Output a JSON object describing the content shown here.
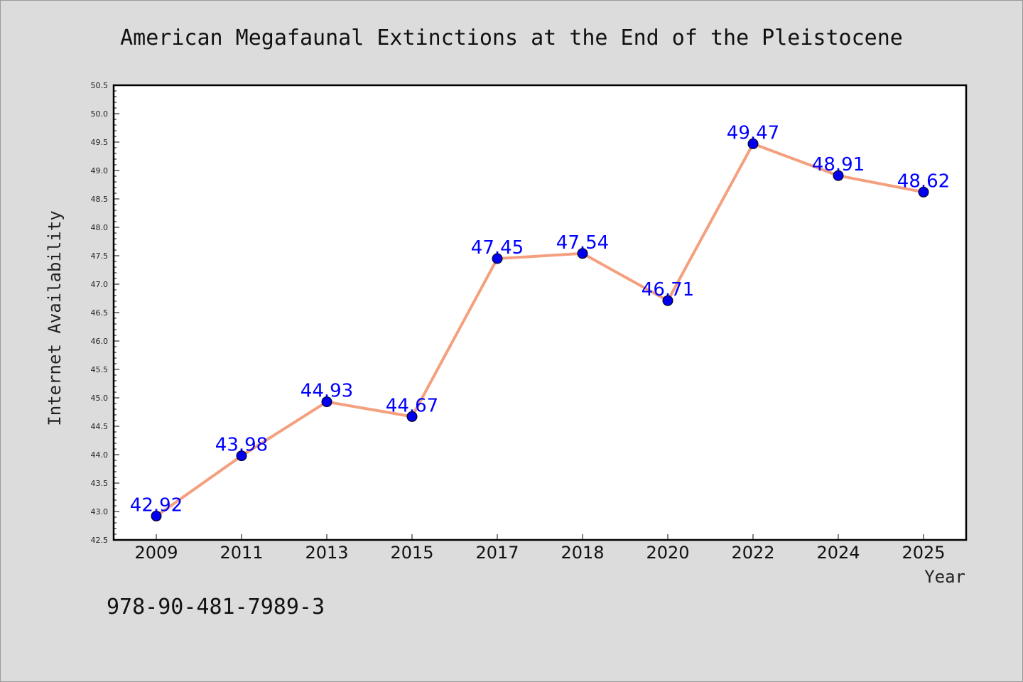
{
  "chart_data": {
    "type": "line",
    "title": "American Megafaunal Extinctions at the End of the Pleistocene",
    "xlabel": "Year",
    "ylabel": "Internet Availability",
    "categories": [
      "2009",
      "2011",
      "2013",
      "2015",
      "2017",
      "2018",
      "2020",
      "2022",
      "2024",
      "2025"
    ],
    "series": [
      {
        "values": [
          42.92,
          43.98,
          44.93,
          44.67,
          47.45,
          47.54,
          46.71,
          49.47,
          48.91,
          48.62
        ]
      }
    ],
    "data_labels": [
      "42.92",
      "43.98",
      "44.93",
      "44.67",
      "47.45",
      "47.54",
      "46.71",
      "49.47",
      "48.91",
      "48.62"
    ],
    "ylim": [
      42.5,
      50.5
    ],
    "yticks": [
      "42.5",
      "43.0",
      "43.5",
      "44.0",
      "44.5",
      "45.0",
      "45.5",
      "46.0",
      "46.5",
      "47.0",
      "47.5",
      "48.0",
      "48.5",
      "49.0",
      "49.5",
      "50.0",
      "50.5"
    ],
    "grid": false,
    "legend": "none",
    "line_color": "#f4a07f",
    "marker_color": "#0000ee",
    "label_color": "#0000ff"
  },
  "footer_code": "978-90-481-7989-3"
}
